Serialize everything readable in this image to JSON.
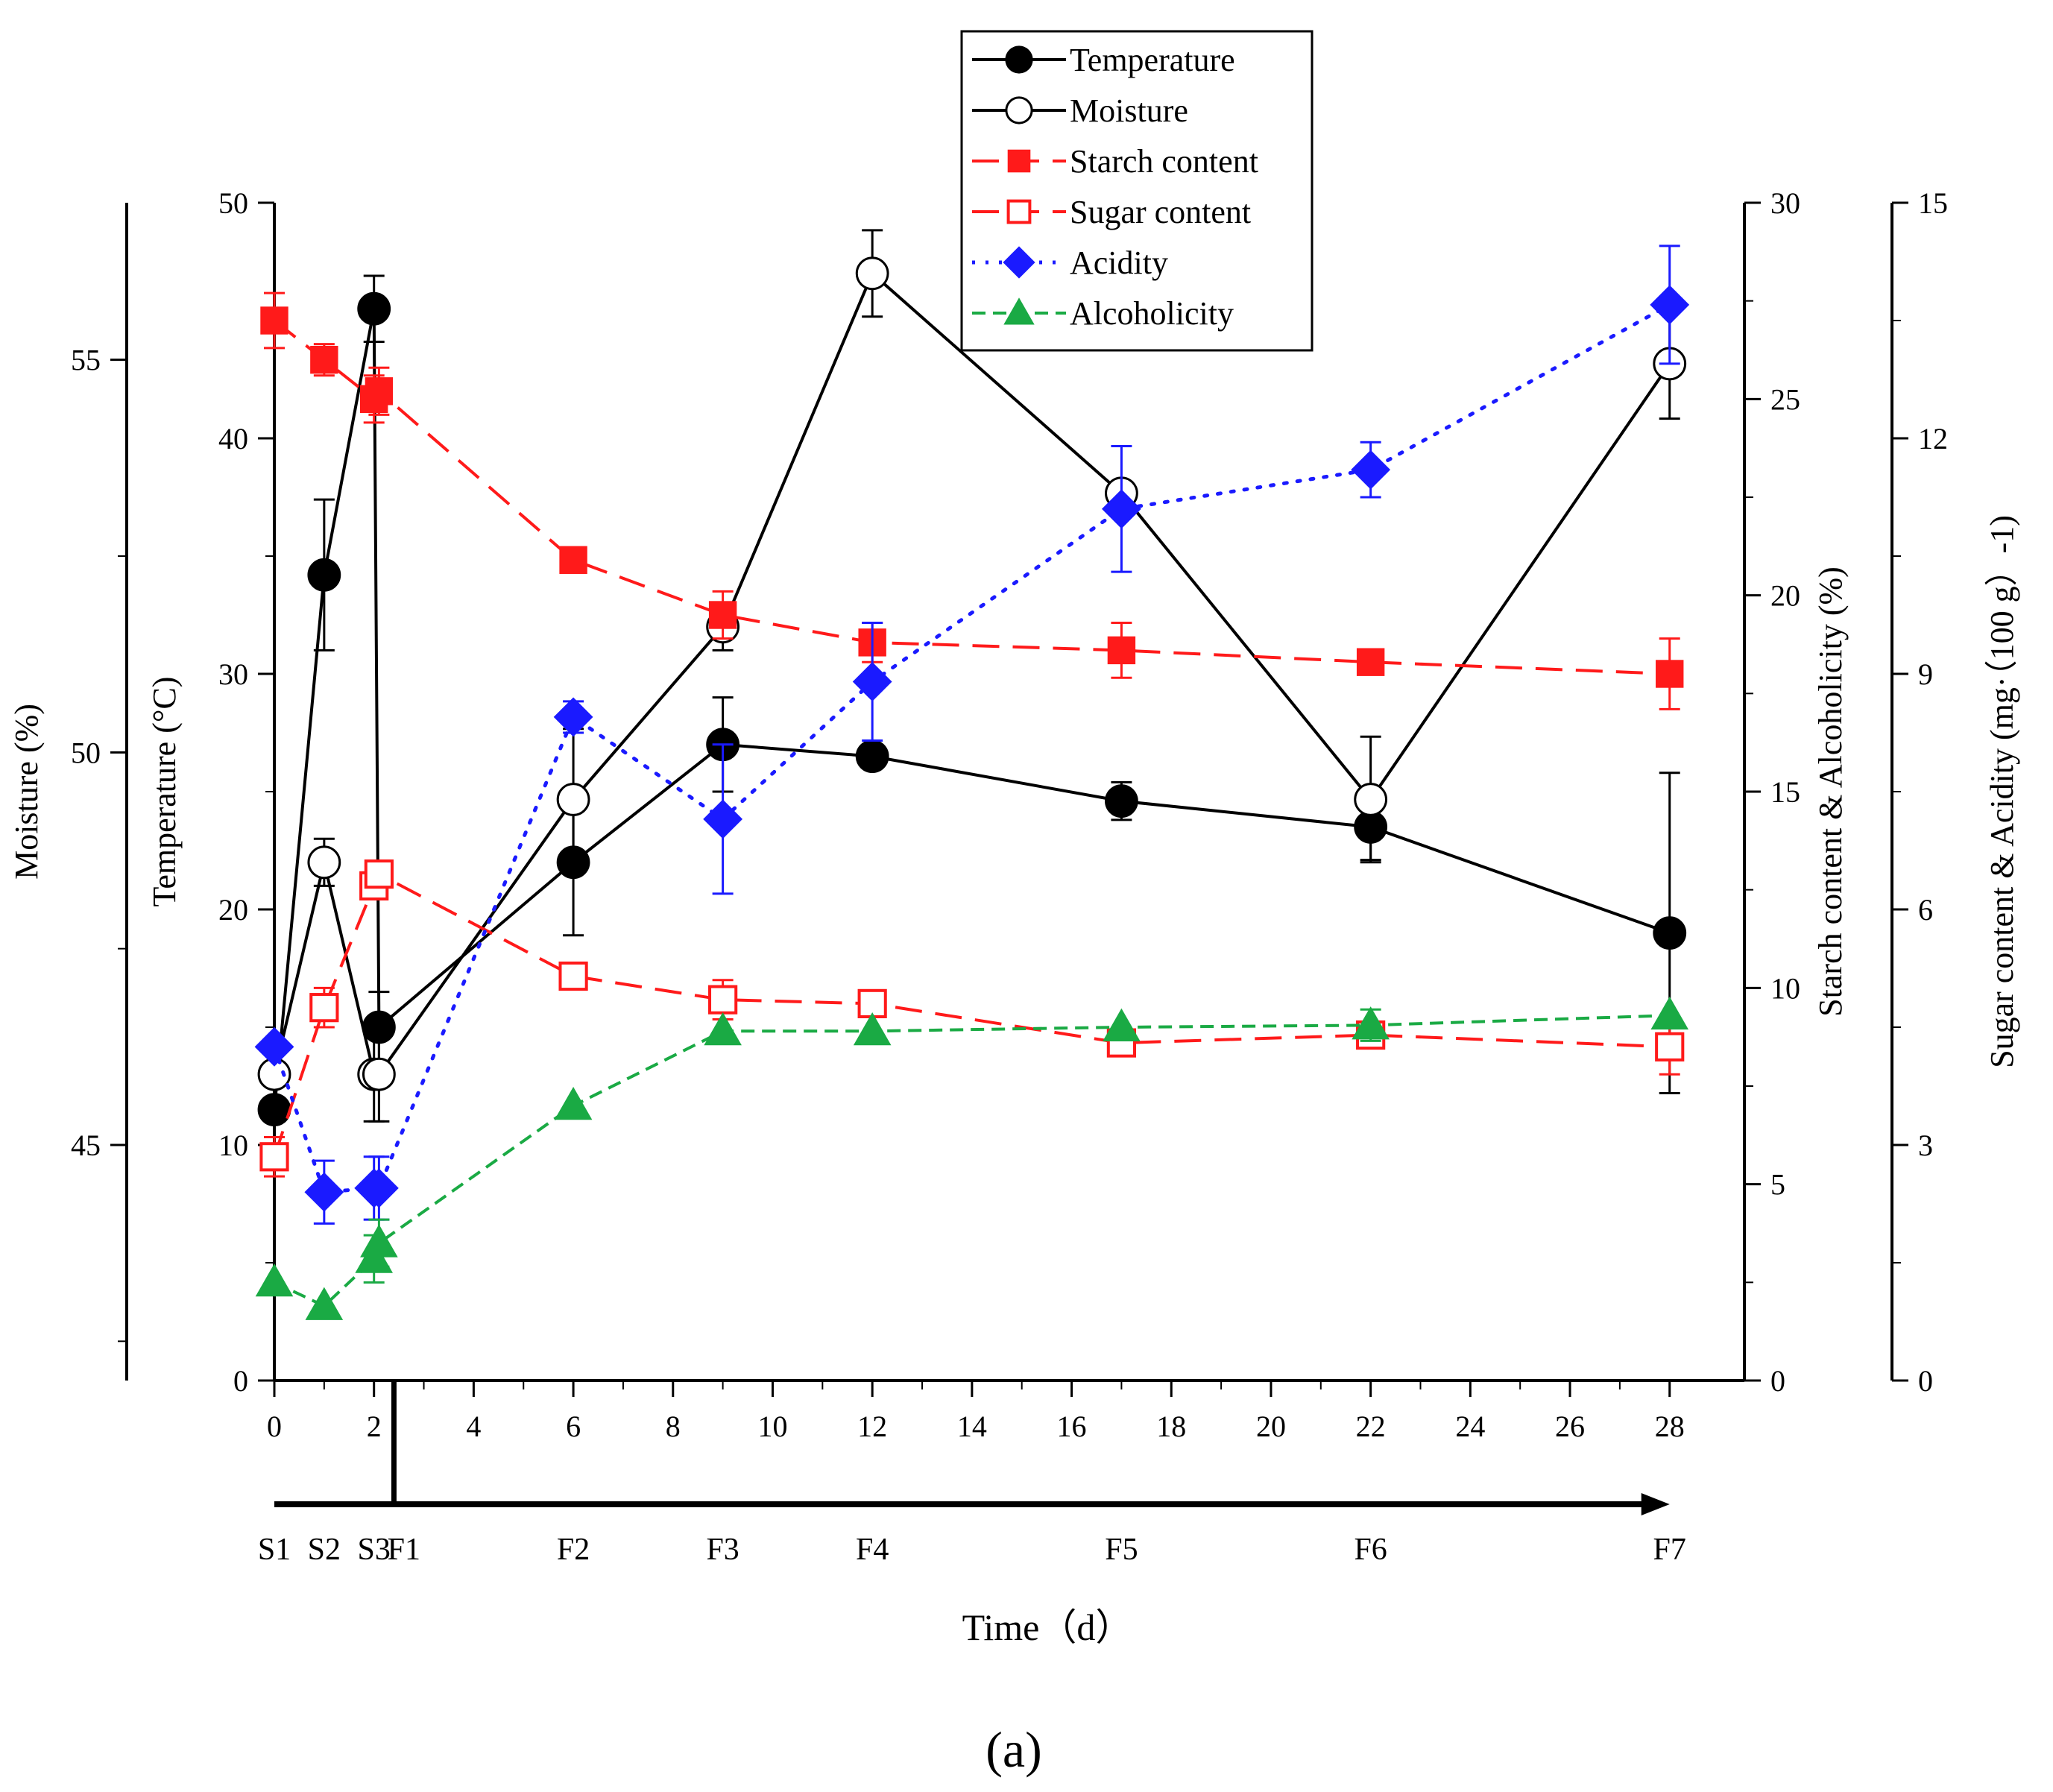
{
  "chart_data": {
    "type": "line",
    "x": [
      0,
      1,
      2,
      2.1,
      6,
      9,
      12,
      17,
      22,
      28
    ],
    "xlabel": "Time（d）",
    "xlim": [
      0,
      29.5
    ],
    "xticks": [
      "0",
      "2",
      "4",
      "6",
      "8",
      "10",
      "12",
      "14",
      "16",
      "18",
      "20",
      "22",
      "24",
      "26",
      "28"
    ],
    "stages": [
      {
        "label": "S1",
        "x": 0
      },
      {
        "label": "S2",
        "x": 1
      },
      {
        "label": "S3",
        "x": 2
      },
      {
        "label": "F1",
        "x": 2.6
      },
      {
        "label": "F2",
        "x": 6
      },
      {
        "label": "F3",
        "x": 9
      },
      {
        "label": "F4",
        "x": 12
      },
      {
        "label": "F5",
        "x": 17
      },
      {
        "label": "F6",
        "x": 22
      },
      {
        "label": "F7",
        "x": 28
      }
    ],
    "axes": [
      {
        "id": "moisture",
        "label": "Moisture (%)",
        "side": "left-outer",
        "min": 42,
        "max": 57,
        "ticks": [
          "45",
          "50",
          "55"
        ]
      },
      {
        "id": "temperature",
        "label": "Temperature (°C)",
        "side": "left",
        "min": 0,
        "max": 50,
        "ticks": [
          "0",
          "10",
          "20",
          "30",
          "40",
          "50"
        ]
      },
      {
        "id": "starch_alc",
        "label": "Starch content & Alcoholicity (%)",
        "side": "right",
        "min": 0,
        "max": 30,
        "ticks": [
          "0",
          "5",
          "10",
          "15",
          "20",
          "25",
          "30"
        ]
      },
      {
        "id": "sugar_acid",
        "label": "Sugar content & Acidity (mg·（100 g）-1)",
        "side": "right-outer",
        "min": 0,
        "max": 15,
        "ticks": [
          "0",
          "3",
          "6",
          "9",
          "12",
          "15"
        ]
      }
    ],
    "series": [
      {
        "name": "Temperature",
        "axis": "temperature",
        "color": "#000000",
        "marker": "circle-filled",
        "dash": "solid",
        "values": [
          11.5,
          34.2,
          45.5,
          15.0,
          22.0,
          27.0,
          26.5,
          24.6,
          23.5,
          19.0
        ],
        "errors": [
          0,
          3.2,
          1.4,
          1.5,
          3.1,
          2.0,
          0,
          0.8,
          1.4,
          6.8
        ]
      },
      {
        "name": "Moisture",
        "axis": "moisture",
        "color": "#000000",
        "marker": "circle-open",
        "dash": "solid",
        "values": [
          45.9,
          48.6,
          45.9,
          45.9,
          49.4,
          51.6,
          56.1,
          53.3,
          49.4,
          54.95
        ],
        "errors": [
          0,
          0.3,
          0.6,
          0.6,
          0.9,
          0.3,
          0.55,
          0,
          0.8,
          0.7
        ]
      },
      {
        "name": "Starch content",
        "axis": "starch_alc",
        "color": "#ff1a1a",
        "marker": "square-filled",
        "dash": "dashed",
        "values": [
          27.0,
          26.0,
          25.0,
          25.2,
          20.9,
          19.5,
          18.8,
          18.6,
          18.3,
          18.0
        ],
        "errors": [
          0.7,
          0.4,
          0.6,
          0.6,
          0,
          0.6,
          0.5,
          0.7,
          0,
          0.9
        ]
      },
      {
        "name": "Sugar content",
        "axis": "sugar_acid",
        "color": "#ff1a1a",
        "marker": "square-open",
        "dash": "dashed",
        "values": [
          2.85,
          4.75,
          6.3,
          6.45,
          5.15,
          4.85,
          4.8,
          4.3,
          4.4,
          4.25
        ],
        "errors": [
          0.25,
          0.25,
          0.15,
          0.15,
          0.1,
          0.25,
          0.15,
          0.15,
          0.15,
          0.35
        ]
      },
      {
        "name": "Acidity",
        "axis": "sugar_acid",
        "color": "#1a1aff",
        "marker": "diamond-filled",
        "dash": "dotted",
        "values": [
          4.25,
          2.4,
          2.45,
          2.45,
          8.45,
          7.15,
          8.9,
          11.1,
          11.6,
          13.7
        ],
        "errors": [
          0,
          0.4,
          0.4,
          0.4,
          0.2,
          0.95,
          0.75,
          0.8,
          0.35,
          0.75
        ]
      },
      {
        "name": "Alcoholicity",
        "axis": "starch_alc",
        "color": "#1aaa44",
        "marker": "triangle-filled",
        "dash": "short-dashed",
        "values": [
          2.5,
          1.9,
          3.1,
          3.5,
          7.0,
          8.9,
          8.9,
          9.0,
          9.05,
          9.3
        ],
        "errors": [
          0,
          0,
          0.6,
          0.6,
          0,
          0,
          0,
          0,
          0.4,
          0
        ]
      }
    ],
    "legend_position": "top-center",
    "caption": "(a)"
  }
}
